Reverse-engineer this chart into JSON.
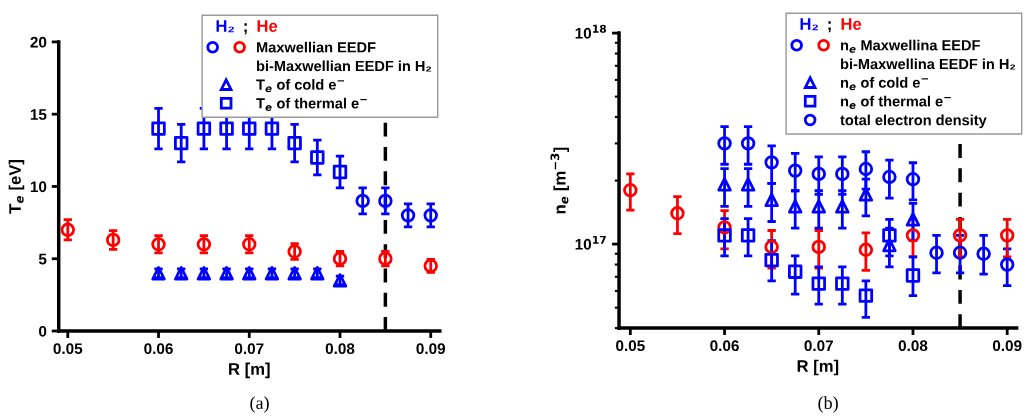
{
  "chart_data": [
    {
      "type": "scatter",
      "xlabel": "R [m]",
      "ylabel": "T$_{e}$ [eV]",
      "xlim": [
        0.049,
        0.091
      ],
      "ylim": [
        0,
        20
      ],
      "xticks": [
        0.05,
        0.06,
        0.07,
        0.08,
        0.09
      ],
      "yticks": [
        0,
        5,
        10,
        15,
        20
      ],
      "grid": false,
      "legend": "top right",
      "annotations": [
        "bi-Maxwellian EEDF in H₂",
        "(a)",
        "He",
        ";",
        "H₂"
      ],
      "ref_lines": [
        {
          "axis": "x",
          "value": 0.085,
          "color": "#000000",
          "line_style": "dashed"
        }
      ],
      "series": [
        {
          "color": "#0000ff",
          "marker": "circle",
          "x": [
            0.0825,
            0.085,
            0.0875,
            0.09
          ],
          "values": [
            9,
            9,
            8,
            8
          ],
          "errors": [
            0.9,
            0.9,
            0.8,
            0.8
          ]
        },
        {
          "name": "Maxwellian EEDF",
          "color": "#ff0000",
          "marker": "circle",
          "x": [
            0.05,
            0.055,
            0.06,
            0.065,
            0.07,
            0.075,
            0.08,
            0.085,
            0.09
          ],
          "values": [
            7,
            6.3,
            6,
            6,
            6,
            5.5,
            5,
            5,
            4.5
          ],
          "errors": [
            0.7,
            0.65,
            0.6,
            0.6,
            0.6,
            0.55,
            0.5,
            0.5,
            0.45
          ]
        },
        {
          "name": "T$_{e}$ of cold e$^{−}$",
          "color": "#0000ff",
          "marker": "triangle",
          "x": [
            0.06,
            0.0625,
            0.065,
            0.0675,
            0.07,
            0.0725,
            0.075,
            0.0775,
            0.08
          ],
          "values": [
            4,
            4,
            4,
            4,
            4,
            4,
            4,
            4,
            3.5
          ],
          "errors": [
            0.3,
            0.3,
            0.3,
            0.3,
            0.3,
            0.3,
            0.3,
            0.3,
            0.3
          ]
        },
        {
          "name": "T$_{e}$ of thermal e$^{−}$",
          "color": "#0000ff",
          "marker": "square",
          "x": [
            0.06,
            0.0625,
            0.065,
            0.0675,
            0.07,
            0.0725,
            0.075,
            0.0775,
            0.08
          ],
          "values": [
            14,
            13,
            14,
            14,
            14,
            14,
            13,
            12,
            11
          ],
          "errors": [
            1.4,
            1.3,
            1.4,
            1.4,
            1.4,
            1.4,
            1.3,
            1.2,
            1.1
          ]
        }
      ]
    },
    {
      "type": "scatter",
      "xlabel": "R [m]",
      "ylabel": "n$_{e}$ [m$^{−3}$]",
      "log": "y",
      "xlim": [
        0.0488,
        0.091
      ],
      "ylim": [
        4e+16,
        1e+18
      ],
      "xticks": [
        0.05,
        0.06,
        0.07,
        0.08,
        0.09
      ],
      "yticks": [
        {
          "value": 1e+17,
          "label": "10$^{17}$"
        },
        {
          "value": 1e+18,
          "label": "10$^{18}$"
        }
      ],
      "grid": false,
      "legend": "top right",
      "annotations": [
        "bi-Maxwellina EEDF in H₂",
        "(b)",
        "He",
        ";",
        "H₂"
      ],
      "ref_lines": [
        {
          "axis": "x",
          "value": 0.085,
          "color": "#000000",
          "line_style": "dashed"
        }
      ],
      "series": [
        {
          "color": "#0000ff",
          "marker": "circle",
          "x": [
            0.0825,
            0.085,
            0.0875,
            0.09
          ],
          "values": [
            9.1e+16,
            9.1e+16,
            9e+16,
            8e+16
          ],
          "errors": [
            [
              7.3e+16,
              1.1e+17
            ],
            [
              7.3e+16,
              1.1e+17
            ],
            [
              7.2e+16,
              1.1e+17
            ],
            [
              6.35e+16,
              9.5e+16
            ]
          ]
        },
        {
          "name": "n$_{e}$ Maxwellina EEDF",
          "color": "#ff0000",
          "marker": "circle",
          "x": [
            0.05,
            0.055,
            0.06,
            0.065,
            0.07,
            0.075,
            0.08,
            0.085,
            0.09
          ],
          "values": [
            1.8e+17,
            1.4e+17,
            1.2e+17,
            9.7e+16,
            9.7e+16,
            9.4e+16,
            1.1e+17,
            1.1e+17,
            1.1e+17
          ],
          "errors": [
            [
              1.45e+17,
              2.15e+17
            ],
            [
              1.12e+17,
              1.68e+17
            ],
            [
              9.5e+16,
              1.44e+17
            ],
            [
              7.7e+16,
              1.16e+17
            ],
            [
              7.7e+16,
              1.16e+17
            ],
            [
              7.5e+16,
              1.13e+17
            ],
            [
              8.7e+16,
              1.31e+17
            ],
            [
              8.7e+16,
              1.31e+17
            ],
            [
              8.7e+16,
              1.31e+17
            ]
          ]
        },
        {
          "name": "n$_{e}$ of cold e$^{−}$",
          "color": "#0000ff",
          "marker": "triangle",
          "x": [
            0.06,
            0.0625,
            0.065,
            0.0675,
            0.07,
            0.0725,
            0.075,
            0.0775,
            0.08
          ],
          "values": [
            1.92e+17,
            1.92e+17,
            1.62e+17,
            1.51e+17,
            1.51e+17,
            1.51e+17,
            1.72e+17,
            9.9e+16,
            1.31e+17
          ],
          "errors": [
            [
              1.51e+17,
              2.28e+17
            ],
            [
              1.51e+17,
              2.28e+17
            ],
            [
              1.28e+17,
              1.94e+17
            ],
            [
              1.19e+17,
              1.79e+17
            ],
            [
              1.19e+17,
              1.79e+17
            ],
            [
              1.19e+17,
              1.79e+17
            ],
            [
              1.36e+17,
              2.03e+17
            ],
            [
              7.8e+16,
              1.19e+17
            ],
            [
              1.04e+17,
              1.56e+17
            ]
          ]
        },
        {
          "name": "n$_{e}$ of thermal e$^{−}$",
          "color": "#0000ff",
          "marker": "square",
          "x": [
            0.06,
            0.0625,
            0.065,
            0.0675,
            0.07,
            0.0725,
            0.075,
            0.0775,
            0.08
          ],
          "values": [
            1.1e+17,
            1.1e+17,
            8.4e+16,
            7.4e+16,
            6.5e+16,
            6.5e+16,
            5.7e+16,
            1.1e+17,
            7.1e+16
          ],
          "errors": [
            [
              8.8e+16,
              1.32e+17
            ],
            [
              8.8e+16,
              1.32e+17
            ],
            [
              6.7e+16,
              1.04e+17
            ],
            [
              5.8e+16,
              8.8e+16
            ],
            [
              5.2e+16,
              7.8e+16
            ],
            [
              5.2e+16,
              7.8e+16
            ],
            [
              4.5e+16,
              6.7e+16
            ],
            [
              8.8e+16,
              1.31e+17
            ],
            [
              5.7e+16,
              8.7e+16
            ]
          ]
        },
        {
          "name": "total electron density",
          "color": "#0000ff",
          "marker": "circle",
          "x": [
            0.06,
            0.0625,
            0.065,
            0.0675,
            0.07,
            0.0725,
            0.075,
            0.0775,
            0.08
          ],
          "values": [
            3e+17,
            3e+17,
            2.44e+17,
            2.23e+17,
            2.15e+17,
            2.15e+17,
            2.27e+17,
            2.08e+17,
            2.03e+17
          ],
          "errors": [
            [
              2.39e+17,
              3.6e+17
            ],
            [
              2.39e+17,
              3.6e+17
            ],
            [
              1.94e+17,
              2.92e+17
            ],
            [
              1.79e+17,
              2.69e+17
            ],
            [
              1.72e+17,
              2.59e+17
            ],
            [
              1.72e+17,
              2.59e+17
            ],
            [
              1.82e+17,
              2.74e+17
            ],
            [
              1.65e+17,
              2.5e+17
            ],
            [
              1.62e+17,
              2.43e+17
            ]
          ]
        }
      ]
    }
  ]
}
